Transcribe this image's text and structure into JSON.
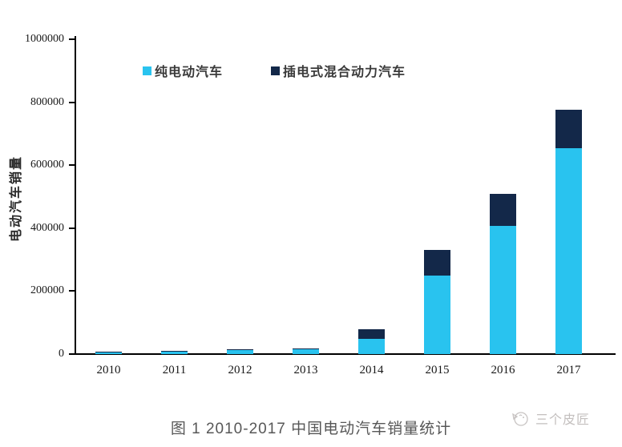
{
  "page": {
    "caption": "图 1 2010-2017 中国电动汽车销量统计",
    "watermark_text": "三个皮匠"
  },
  "colors": {
    "pure_ev": "#29C3EF",
    "phev": "#132849",
    "axis": "#000000",
    "caption_gray": "#575757",
    "watermark_gray": "#C3BFBE"
  },
  "chart_data": {
    "type": "bar",
    "stacked": true,
    "title": "",
    "xlabel": "",
    "ylabel": "电动汽车销量",
    "ylim": [
      0,
      1000000
    ],
    "yticks": [
      0,
      200000,
      400000,
      600000,
      800000,
      1000000
    ],
    "ytick_labels": [
      "0",
      "200000",
      "400000",
      "600000",
      "800000",
      "1000000"
    ],
    "categories": [
      "2010",
      "2011",
      "2012",
      "2013",
      "2014",
      "2015",
      "2016",
      "2017"
    ],
    "series": [
      {
        "name": "纯电动汽车",
        "color": "#29C3EF",
        "values": [
          5000,
          6500,
          11500,
          15000,
          48000,
          250000,
          408000,
          655000
        ]
      },
      {
        "name": "插电式混合动力汽车",
        "color": "#132849",
        "values": [
          2000,
          2500,
          2000,
          3000,
          32000,
          82000,
          102000,
          122000
        ]
      }
    ],
    "totals": [
      7000,
      9000,
      13500,
      18000,
      80000,
      332000,
      510000,
      777000
    ],
    "legend_position": "top",
    "grid": false
  }
}
